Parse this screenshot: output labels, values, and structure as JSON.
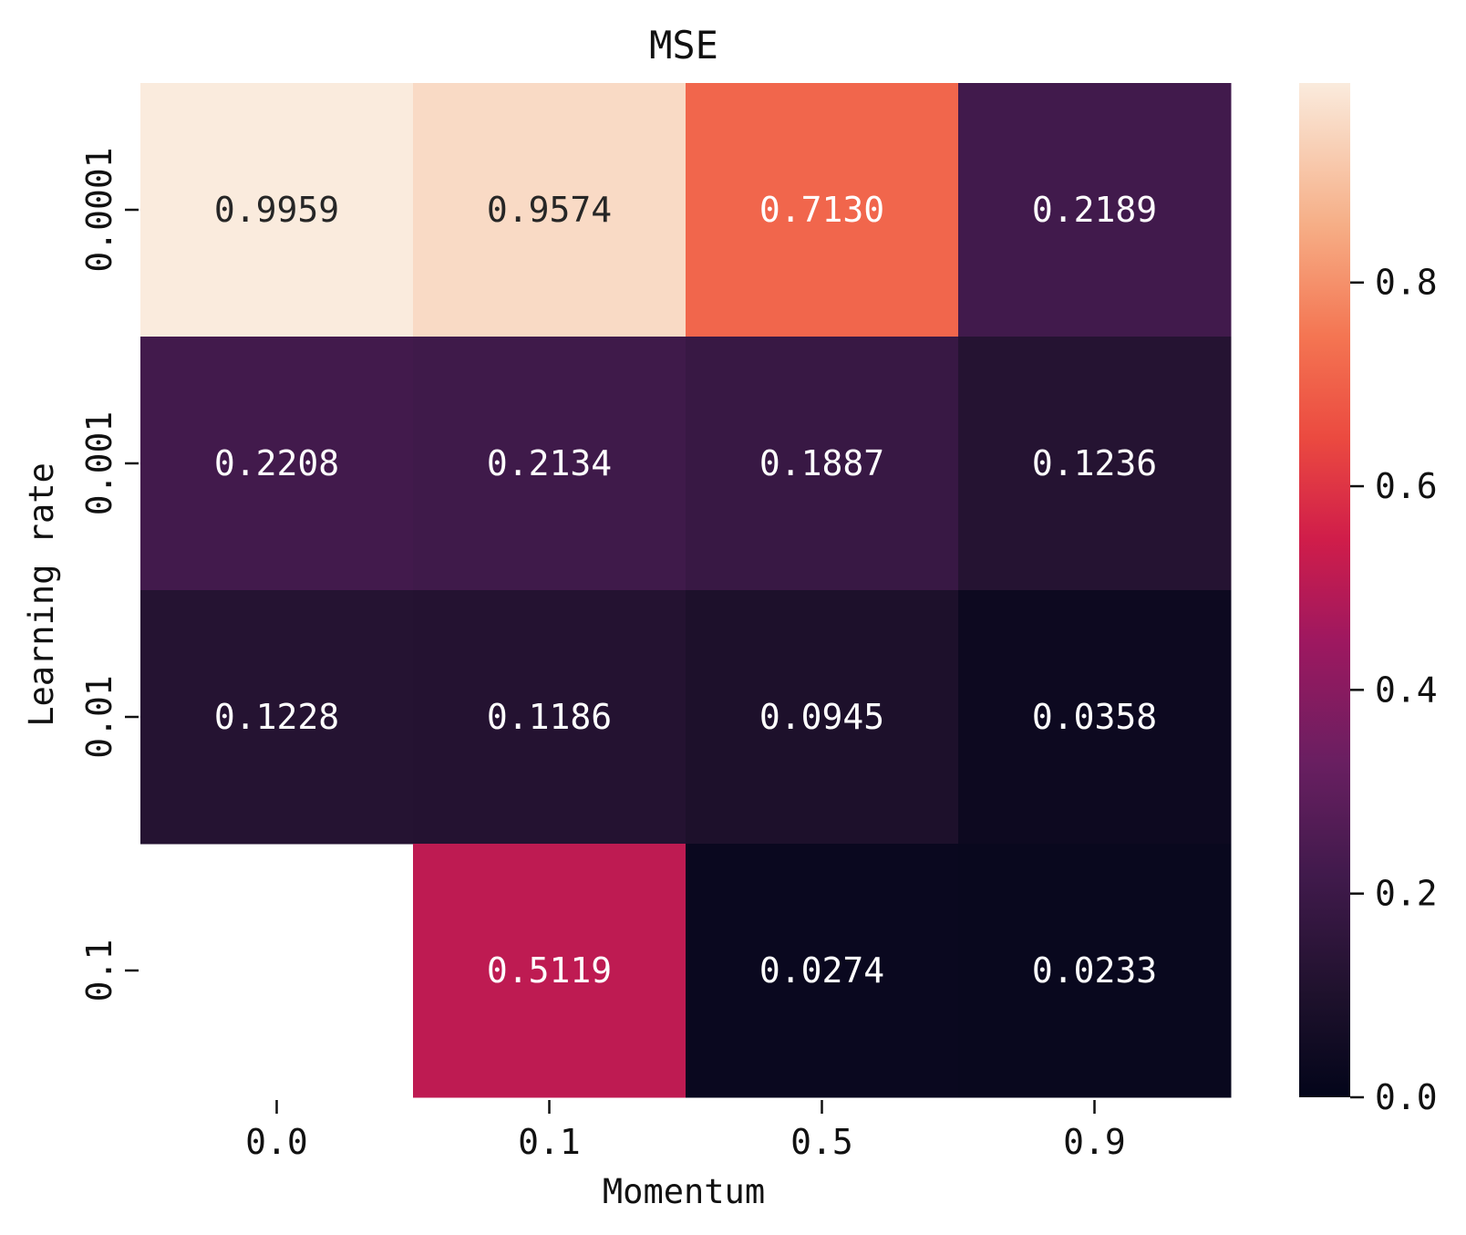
{
  "chart_data": {
    "type": "heatmap",
    "title": "MSE",
    "xlabel": "Momentum",
    "ylabel": "Learning rate",
    "x_categories": [
      "0.0",
      "0.1",
      "0.5",
      "0.9"
    ],
    "y_categories": [
      "0.0001",
      "0.001",
      "0.01",
      "0.1"
    ],
    "values": [
      [
        0.9959,
        0.9574,
        0.713,
        0.2189
      ],
      [
        0.2208,
        0.2134,
        0.1887,
        0.1236
      ],
      [
        0.1228,
        0.1186,
        0.0945,
        0.0358
      ],
      [
        null,
        0.5119,
        0.0274,
        0.0233
      ]
    ],
    "colorbar": {
      "range": [
        0.0,
        0.9959
      ],
      "ticks": [
        "0.0",
        "0.2",
        "0.4",
        "0.6",
        "0.8"
      ],
      "colormap": "rocket"
    }
  }
}
